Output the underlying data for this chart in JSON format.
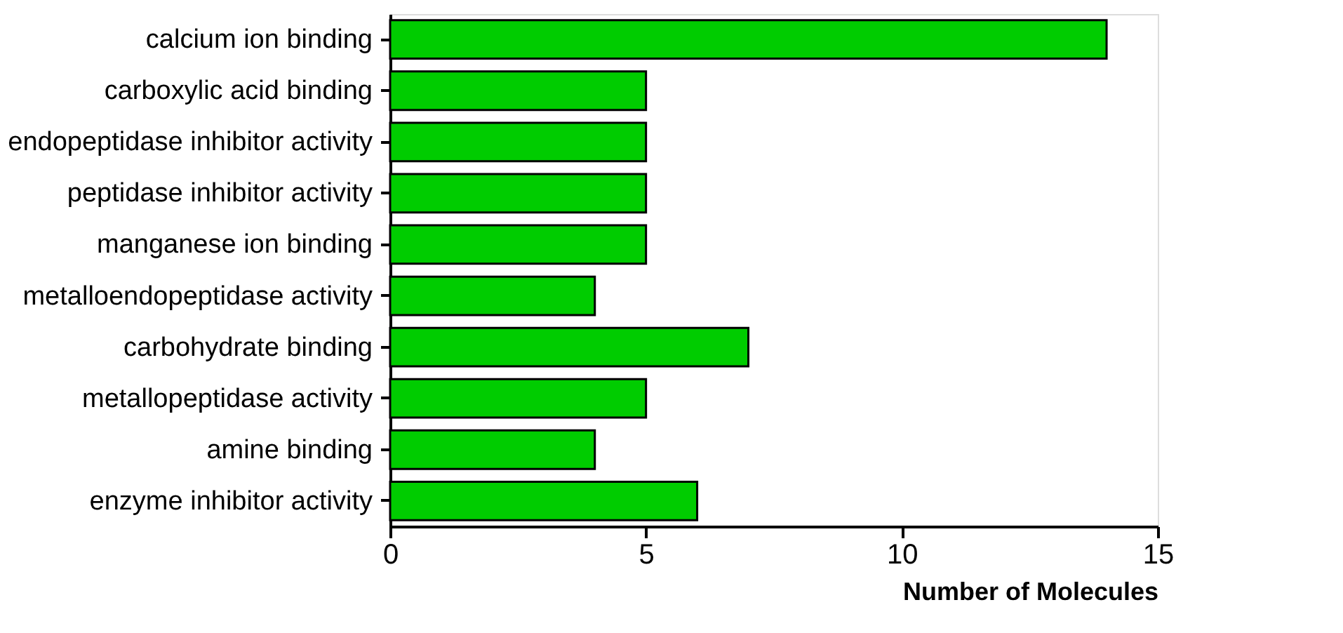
{
  "chart_data": {
    "type": "bar",
    "orientation": "horizontal",
    "xlabel": "Number of Molecules",
    "categories": [
      "calcium ion binding",
      "carboxylic acid binding",
      "endopeptidase inhibitor activity",
      "peptidase inhibitor activity",
      "manganese ion binding",
      "metalloendopeptidase activity",
      "carbohydrate binding",
      "metallopeptidase activity",
      "amine binding",
      "enzyme inhibitor activity"
    ],
    "values": [
      14,
      5,
      5,
      5,
      5,
      4,
      7,
      5,
      4,
      6
    ],
    "color": "#00cc00",
    "xlim": [
      0,
      15
    ],
    "xticks": [
      0,
      5,
      10,
      15
    ],
    "grid": false
  }
}
